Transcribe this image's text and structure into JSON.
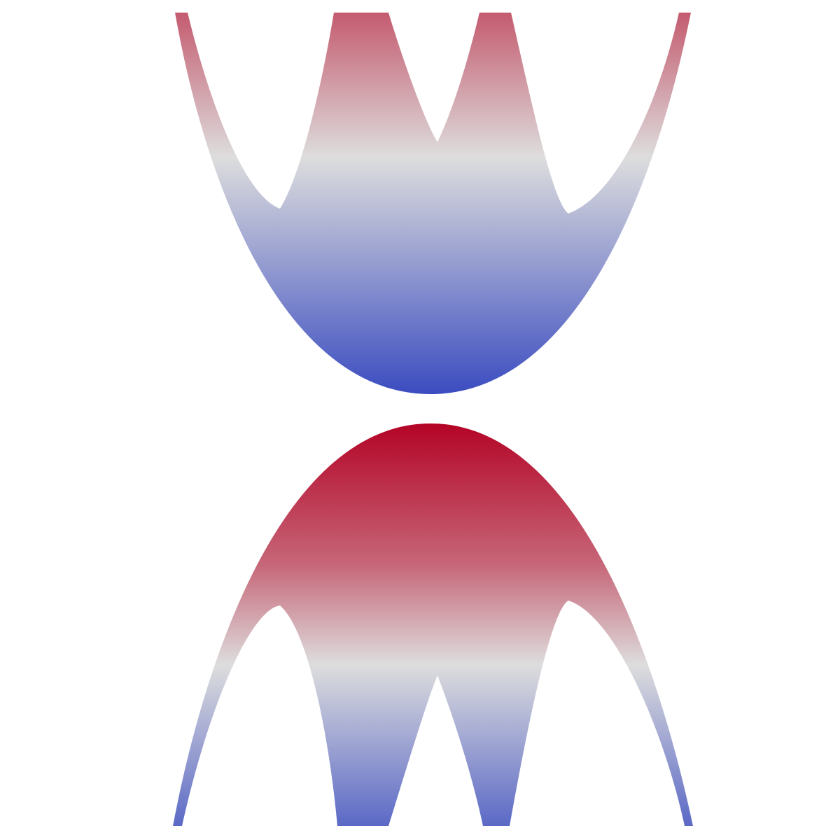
{
  "colormap": {
    "low": "#3b4cc0",
    "mid": "#dddddd",
    "high": "#b40426"
  }
}
